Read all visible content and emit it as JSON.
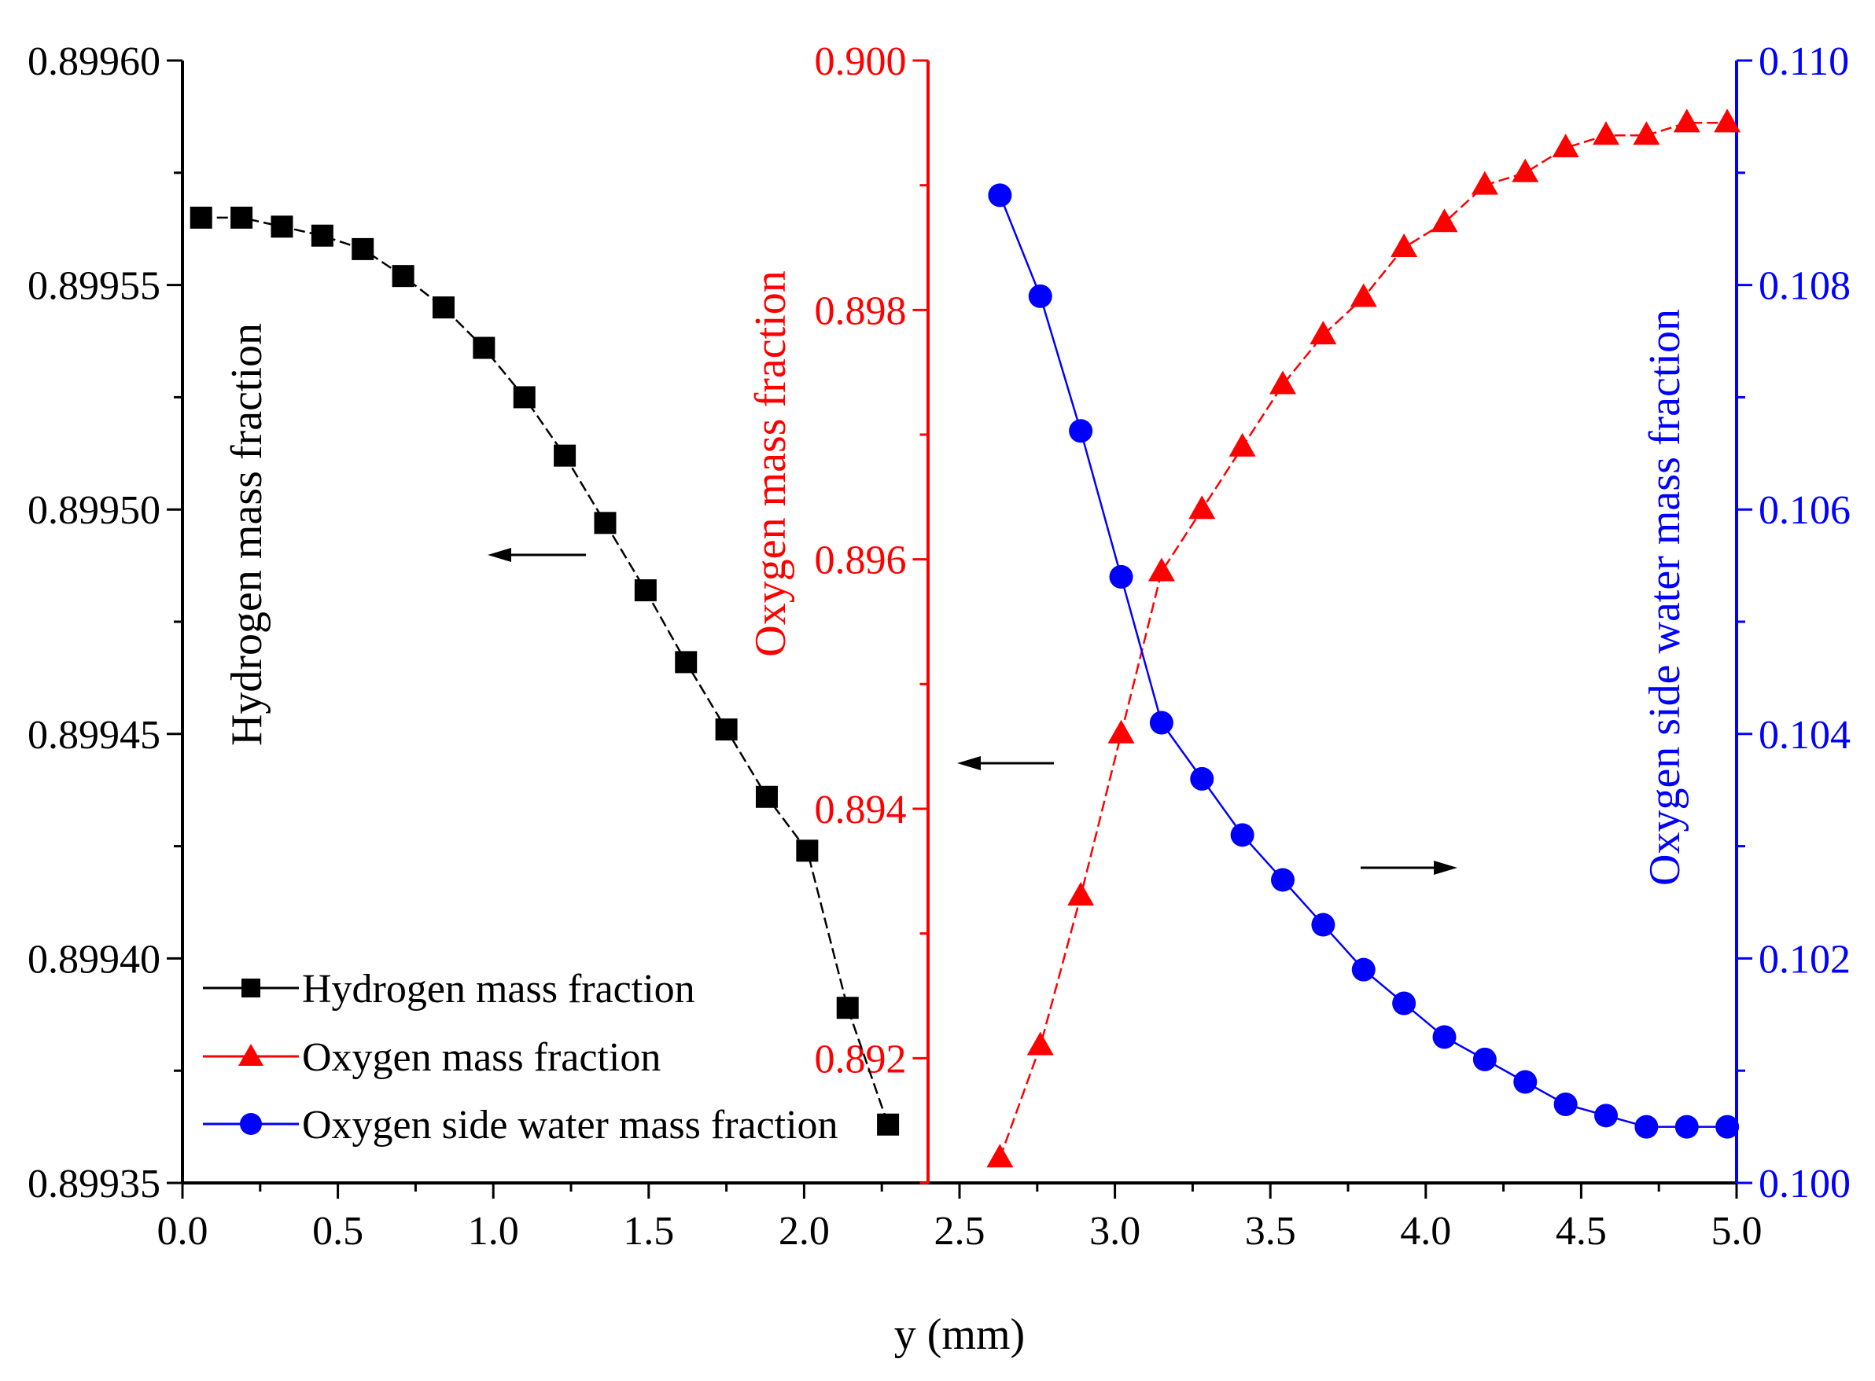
{
  "chart_data": {
    "type": "line",
    "xlabel": "y (mm)",
    "xlim": [
      0.0,
      5.0
    ],
    "x_ticks": [
      "0.0",
      "0.5",
      "1.0",
      "1.5",
      "2.0",
      "2.5",
      "3.0",
      "3.5",
      "4.0",
      "4.5",
      "5.0"
    ],
    "grid": false,
    "legend_position": "bottom-left",
    "axes": {
      "left": {
        "label": "Hydrogen mass fraction",
        "color": "#000000",
        "ylim": [
          0.89935,
          0.8996
        ],
        "ticks": [
          "0.89935",
          "0.89940",
          "0.89945",
          "0.89950",
          "0.89955",
          "0.89960"
        ]
      },
      "middle": {
        "label": "Oxygen mass fraction",
        "color": "#ff0000",
        "position_x": 2.4,
        "ylim": [
          0.891,
          0.9
        ],
        "ticks": [
          "0.892",
          "0.894",
          "0.896",
          "0.898",
          "0.900"
        ]
      },
      "right": {
        "label": "Oxygen side water mass fraction",
        "color": "#0000ff",
        "ylim": [
          0.1,
          0.11
        ],
        "ticks": [
          "0.100",
          "0.102",
          "0.104",
          "0.106",
          "0.108",
          "0.110"
        ]
      }
    },
    "series": [
      {
        "name": "Hydrogen mass fraction",
        "axis": "left",
        "color": "#000000",
        "marker": "square",
        "line": "dash",
        "x": [
          0.06,
          0.19,
          0.32,
          0.45,
          0.58,
          0.71,
          0.84,
          0.97,
          1.1,
          1.23,
          1.36,
          1.49,
          1.62,
          1.75,
          1.88,
          2.01,
          2.14,
          2.27
        ],
        "y": [
          0.899565,
          0.899565,
          0.899563,
          0.899561,
          0.899558,
          0.899552,
          0.899545,
          0.899536,
          0.899525,
          0.899512,
          0.899497,
          0.899482,
          0.899466,
          0.899451,
          0.899436,
          0.899424,
          0.899389,
          0.899363
        ]
      },
      {
        "name": "Oxygen mass fraction",
        "axis": "middle",
        "color": "#ff0000",
        "marker": "triangle",
        "line": "dash",
        "x": [
          2.63,
          2.76,
          2.89,
          3.02,
          3.15,
          3.28,
          3.41,
          3.54,
          3.67,
          3.8,
          3.93,
          4.06,
          4.19,
          4.32,
          4.45,
          4.58,
          4.71,
          4.84,
          4.97
        ],
        "y": [
          0.8912,
          0.8921,
          0.8933,
          0.8946,
          0.8959,
          0.8964,
          0.8969,
          0.8974,
          0.8978,
          0.8981,
          0.8985,
          0.8987,
          0.899,
          0.8991,
          0.8993,
          0.8994,
          0.8994,
          0.8995,
          0.8995
        ]
      },
      {
        "name": "Oxygen side water mass fraction",
        "axis": "right",
        "color": "#0000ff",
        "marker": "circle",
        "line": "solid",
        "x": [
          2.63,
          2.76,
          2.89,
          3.02,
          3.15,
          3.28,
          3.41,
          3.54,
          3.67,
          3.8,
          3.93,
          4.06,
          4.19,
          4.32,
          4.45,
          4.58,
          4.71,
          4.84,
          4.97
        ],
        "y": [
          0.1088,
          0.1079,
          0.1067,
          0.1054,
          0.1041,
          0.1036,
          0.1031,
          0.1027,
          0.1023,
          0.1019,
          0.1016,
          0.1013,
          0.1011,
          0.1009,
          0.1007,
          0.1006,
          0.1005,
          0.1005,
          0.1005
        ]
      }
    ]
  }
}
